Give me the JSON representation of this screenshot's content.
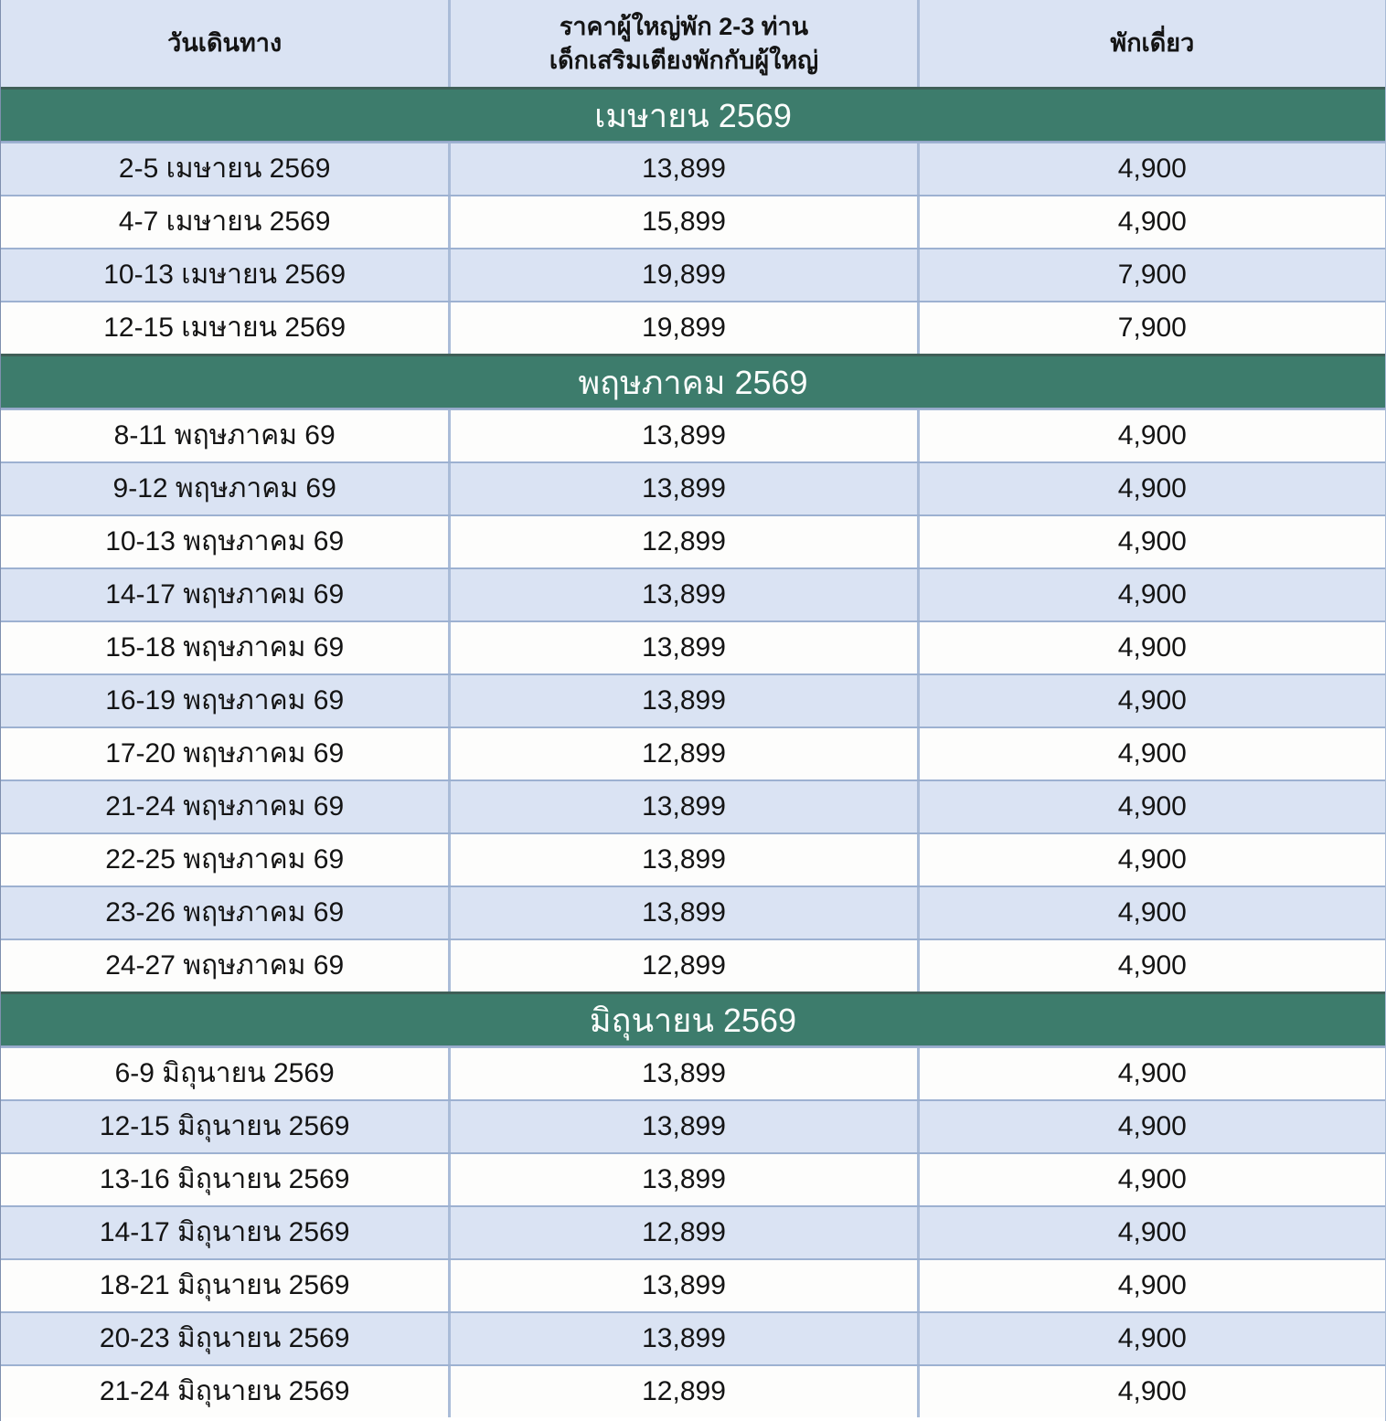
{
  "table": {
    "columns": {
      "date": {
        "label": "วันเดินทาง"
      },
      "price": {
        "label_line1": "ราคาผู้ใหญ่พัก 2-3 ท่าน",
        "label_line2": "เด็กเสริมเตียงพักกับผู้ใหญ่"
      },
      "single": {
        "label": "พักเดี่ยว"
      }
    },
    "sections": [
      {
        "title": "เมษายน 2569",
        "start_shaded": true,
        "rows": [
          {
            "date": "2-5 เมษายน 2569",
            "price": "13,899",
            "single": "4,900"
          },
          {
            "date": "4-7 เมษายน 2569",
            "price": "15,899",
            "single": "4,900"
          },
          {
            "date": "10-13 เมษายน 2569",
            "price": "19,899",
            "single": "7,900"
          },
          {
            "date": "12-15 เมษายน 2569",
            "price": "19,899",
            "single": "7,900"
          }
        ]
      },
      {
        "title": "พฤษภาคม 2569",
        "start_shaded": false,
        "rows": [
          {
            "date": "8-11 พฤษภาคม 69",
            "price": "13,899",
            "single": "4,900"
          },
          {
            "date": "9-12 พฤษภาคม 69",
            "price": "13,899",
            "single": "4,900"
          },
          {
            "date": "10-13 พฤษภาคม 69",
            "price": "12,899",
            "single": "4,900"
          },
          {
            "date": "14-17 พฤษภาคม 69",
            "price": "13,899",
            "single": "4,900"
          },
          {
            "date": "15-18 พฤษภาคม 69",
            "price": "13,899",
            "single": "4,900"
          },
          {
            "date": "16-19 พฤษภาคม 69",
            "price": "13,899",
            "single": "4,900"
          },
          {
            "date": "17-20 พฤษภาคม 69",
            "price": "12,899",
            "single": "4,900"
          },
          {
            "date": "21-24 พฤษภาคม 69",
            "price": "13,899",
            "single": "4,900"
          },
          {
            "date": "22-25 พฤษภาคม 69",
            "price": "13,899",
            "single": "4,900"
          },
          {
            "date": "23-26 พฤษภาคม 69",
            "price": "13,899",
            "single": "4,900"
          },
          {
            "date": "24-27 พฤษภาคม 69",
            "price": "12,899",
            "single": "4,900"
          }
        ]
      },
      {
        "title": "มิถุนายน 2569",
        "start_shaded": false,
        "rows": [
          {
            "date": "6-9 มิถุนายน 2569",
            "price": "13,899",
            "single": "4,900"
          },
          {
            "date": "12-15 มิถุนายน 2569",
            "price": "13,899",
            "single": "4,900"
          },
          {
            "date": "13-16 มิถุนายน 2569",
            "price": "13,899",
            "single": "4,900"
          },
          {
            "date": "14-17 มิถุนายน 2569",
            "price": "12,899",
            "single": "4,900"
          },
          {
            "date": "18-21 มิถุนายน 2569",
            "price": "13,899",
            "single": "4,900"
          },
          {
            "date": "20-23 มิถุนายน 2569",
            "price": "13,899",
            "single": "4,900"
          },
          {
            "date": "21-24 มิถุนายน 2569",
            "price": "12,899",
            "single": "4,900"
          }
        ]
      }
    ]
  },
  "colors": {
    "section_green": "#3d7c6c",
    "section_green_border": "#3f5f57",
    "row_shaded_blue": "#dae3f3",
    "row_white": "#fdfdfc",
    "gridline_blue": "#9db1d1",
    "header_bg": "#dae3f3",
    "section_text": "#fbfdfc",
    "body_text": "#141414"
  }
}
